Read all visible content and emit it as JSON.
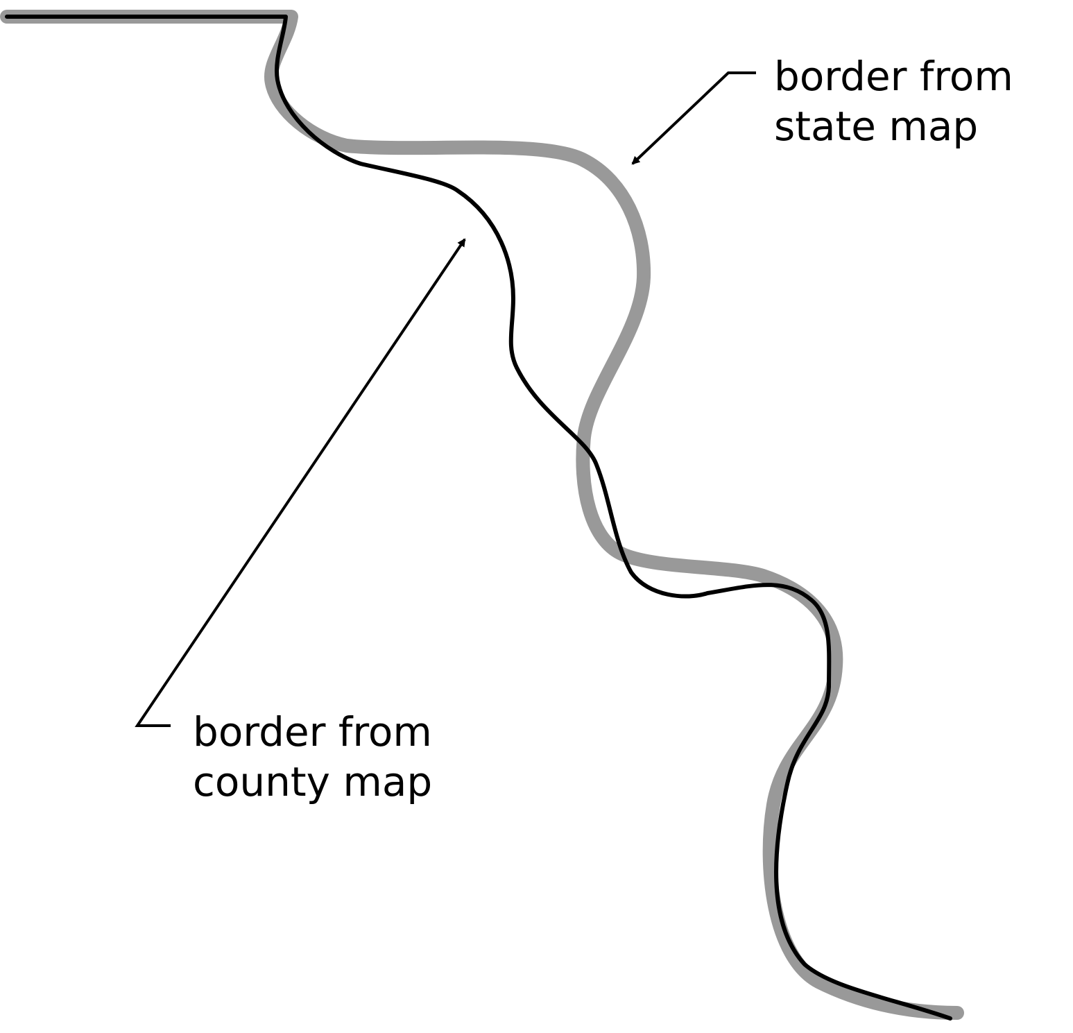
{
  "labels": {
    "state_border": {
      "line1": "border from",
      "line2": "state map"
    },
    "county_border": {
      "line1": "border from",
      "line2": "county map"
    }
  },
  "colors": {
    "state_border": "#999999",
    "county_border": "#000000",
    "background": "#ffffff",
    "text": "#000000"
  }
}
